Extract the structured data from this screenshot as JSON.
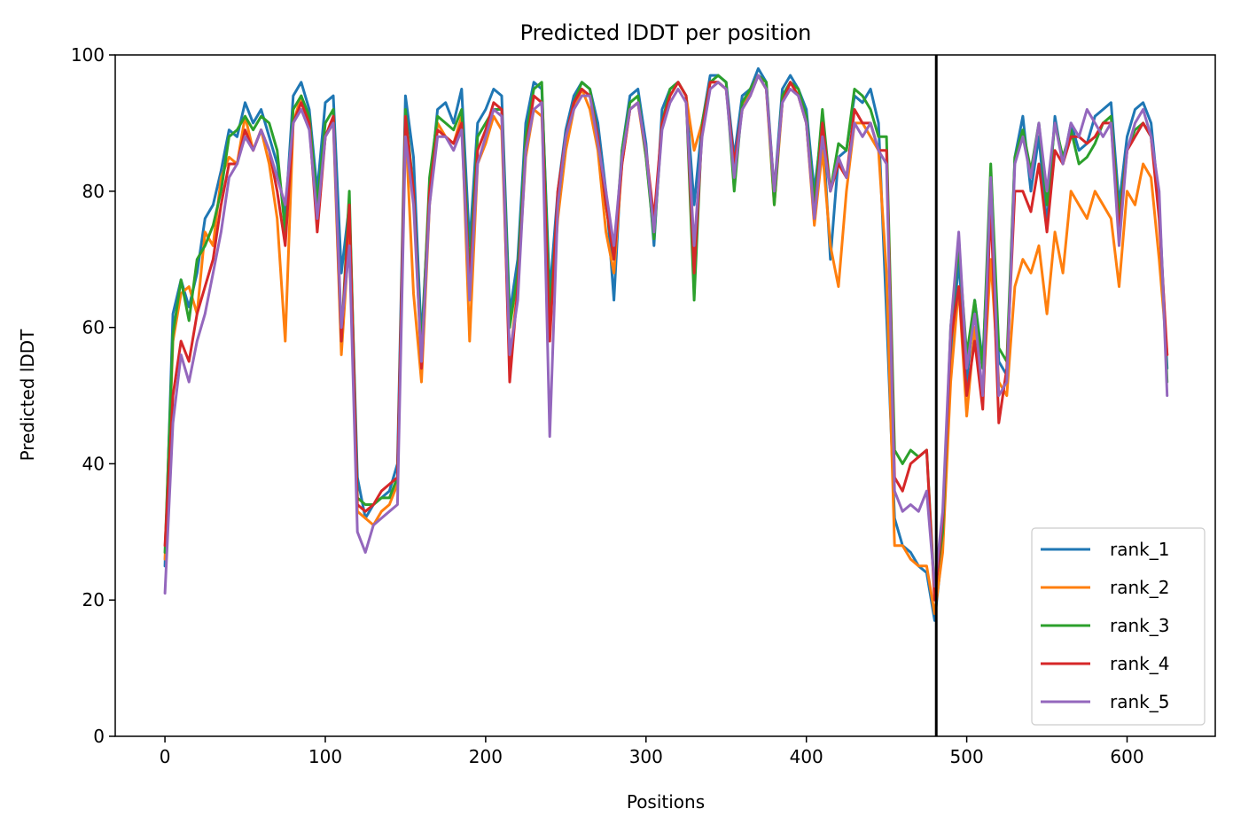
{
  "chart_data": {
    "type": "line",
    "title": "Predicted lDDT per position",
    "xlabel": "Positions",
    "ylabel": "Predicted lDDT",
    "xlim": [
      -31,
      655
    ],
    "ylim": [
      0,
      100
    ],
    "xticks": [
      0,
      100,
      200,
      300,
      400,
      500,
      600
    ],
    "yticks": [
      0,
      20,
      40,
      60,
      80,
      100
    ],
    "grid": false,
    "legend_position": "lower-right",
    "vline": 481,
    "x": [
      0,
      5,
      10,
      15,
      20,
      25,
      30,
      35,
      40,
      45,
      50,
      55,
      60,
      65,
      70,
      75,
      80,
      85,
      90,
      95,
      100,
      105,
      110,
      115,
      120,
      125,
      130,
      135,
      140,
      145,
      150,
      155,
      160,
      165,
      170,
      175,
      180,
      185,
      190,
      195,
      200,
      205,
      210,
      215,
      220,
      225,
      230,
      235,
      240,
      245,
      250,
      255,
      260,
      265,
      270,
      275,
      280,
      285,
      290,
      295,
      300,
      305,
      310,
      315,
      320,
      325,
      330,
      335,
      340,
      345,
      350,
      355,
      360,
      365,
      370,
      375,
      380,
      385,
      390,
      395,
      400,
      405,
      410,
      415,
      420,
      425,
      430,
      435,
      440,
      445,
      450,
      455,
      460,
      465,
      470,
      475,
      480,
      485,
      490,
      495,
      500,
      505,
      510,
      515,
      520,
      525,
      530,
      535,
      540,
      545,
      550,
      555,
      560,
      565,
      570,
      575,
      580,
      585,
      590,
      595,
      600,
      605,
      610,
      615,
      620,
      625
    ],
    "series": [
      {
        "name": "rank_1",
        "color": "#1f77b4",
        "values": [
          25,
          62,
          67,
          63,
          68,
          76,
          78,
          83,
          89,
          88,
          93,
          90,
          92,
          88,
          84,
          76,
          94,
          96,
          92,
          80,
          93,
          94,
          68,
          78,
          38,
          32,
          34,
          35,
          36,
          40,
          94,
          85,
          58,
          80,
          92,
          93,
          90,
          95,
          72,
          90,
          92,
          95,
          94,
          62,
          70,
          90,
          96,
          95,
          65,
          80,
          89,
          94,
          96,
          95,
          90,
          80,
          64,
          86,
          94,
          95,
          87,
          72,
          92,
          95,
          96,
          94,
          78,
          90,
          97,
          97,
          96,
          85,
          94,
          95,
          98,
          96,
          80,
          95,
          97,
          95,
          92,
          80,
          90,
          70,
          85,
          86,
          94,
          93,
          95,
          90,
          62,
          32,
          28,
          27,
          25,
          24,
          17,
          28,
          55,
          70,
          52,
          64,
          55,
          80,
          55,
          53,
          85,
          91,
          80,
          88,
          75,
          91,
          84,
          90,
          86,
          87,
          91,
          92,
          93,
          78,
          88,
          92,
          93,
          90,
          78,
          54
        ]
      },
      {
        "name": "rank_2",
        "color": "#ff7f0e",
        "values": [
          26,
          58,
          65,
          66,
          62,
          74,
          72,
          82,
          85,
          84,
          91,
          86,
          89,
          84,
          76,
          58,
          90,
          94,
          90,
          76,
          88,
          90,
          56,
          74,
          33,
          32,
          31,
          33,
          34,
          37,
          90,
          65,
          52,
          78,
          90,
          88,
          87,
          91,
          58,
          84,
          87,
          91,
          89,
          55,
          66,
          85,
          92,
          91,
          60,
          76,
          86,
          92,
          95,
          92,
          86,
          74,
          68,
          84,
          92,
          93,
          85,
          74,
          90,
          94,
          96,
          94,
          86,
          90,
          96,
          96,
          95,
          83,
          92,
          95,
          97,
          95,
          78,
          93,
          96,
          94,
          90,
          75,
          86,
          72,
          66,
          80,
          90,
          90,
          88,
          86,
          68,
          28,
          28,
          26,
          25,
          25,
          18,
          27,
          52,
          66,
          47,
          60,
          50,
          70,
          52,
          50,
          66,
          70,
          68,
          72,
          62,
          74,
          68,
          80,
          78,
          76,
          80,
          78,
          76,
          66,
          80,
          78,
          84,
          82,
          70,
          56
        ]
      },
      {
        "name": "rank_3",
        "color": "#2ca02c",
        "values": [
          27,
          59,
          67,
          61,
          70,
          72,
          75,
          80,
          88,
          89,
          91,
          89,
          91,
          90,
          86,
          74,
          92,
          94,
          91,
          78,
          90,
          92,
          58,
          80,
          35,
          34,
          34,
          35,
          35,
          38,
          92,
          80,
          56,
          82,
          91,
          90,
          89,
          92,
          68,
          88,
          90,
          92,
          92,
          60,
          68,
          88,
          95,
          96,
          62,
          78,
          88,
          93,
          96,
          95,
          88,
          78,
          70,
          86,
          93,
          94,
          85,
          73,
          90,
          95,
          96,
          94,
          64,
          90,
          96,
          97,
          96,
          80,
          93,
          95,
          97,
          96,
          78,
          94,
          96,
          95,
          91,
          78,
          92,
          80,
          87,
          86,
          95,
          94,
          92,
          88,
          88,
          42,
          40,
          42,
          41,
          42,
          21,
          30,
          60,
          72,
          56,
          64,
          54,
          84,
          57,
          55,
          85,
          89,
          83,
          90,
          78,
          90,
          85,
          89,
          84,
          85,
          87,
          90,
          91,
          76,
          86,
          89,
          90,
          88,
          78,
          52
        ]
      },
      {
        "name": "rank_4",
        "color": "#d62728",
        "values": [
          28,
          50,
          58,
          55,
          62,
          66,
          70,
          78,
          84,
          84,
          89,
          86,
          89,
          86,
          80,
          72,
          90,
          93,
          90,
          74,
          88,
          91,
          58,
          78,
          34,
          33,
          34,
          36,
          37,
          38,
          91,
          80,
          54,
          80,
          89,
          88,
          87,
          90,
          66,
          86,
          89,
          93,
          92,
          52,
          66,
          86,
          94,
          93,
          58,
          80,
          88,
          93,
          95,
          94,
          88,
          78,
          70,
          84,
          92,
          93,
          86,
          76,
          90,
          94,
          96,
          94,
          68,
          89,
          96,
          96,
          95,
          84,
          92,
          94,
          97,
          95,
          80,
          93,
          96,
          94,
          90,
          76,
          90,
          80,
          84,
          82,
          92,
          90,
          90,
          86,
          86,
          38,
          36,
          40,
          41,
          42,
          20,
          32,
          58,
          66,
          50,
          58,
          48,
          78,
          46,
          54,
          80,
          80,
          77,
          84,
          74,
          86,
          84,
          88,
          88,
          87,
          88,
          90,
          90,
          74,
          86,
          88,
          90,
          88,
          76,
          56
        ]
      },
      {
        "name": "rank_5",
        "color": "#9467bd",
        "values": [
          21,
          46,
          56,
          52,
          58,
          62,
          68,
          74,
          82,
          84,
          88,
          86,
          89,
          86,
          82,
          78,
          90,
          92,
          89,
          76,
          88,
          90,
          60,
          72,
          30,
          27,
          31,
          32,
          33,
          34,
          88,
          78,
          55,
          78,
          88,
          88,
          86,
          89,
          64,
          84,
          88,
          92,
          91,
          56,
          64,
          86,
          92,
          93,
          44,
          78,
          88,
          92,
          94,
          94,
          87,
          80,
          72,
          85,
          92,
          93,
          86,
          74,
          89,
          93,
          95,
          93,
          72,
          88,
          95,
          96,
          95,
          82,
          92,
          94,
          97,
          95,
          80,
          93,
          95,
          94,
          90,
          76,
          88,
          80,
          85,
          82,
          90,
          88,
          90,
          86,
          84,
          36,
          33,
          34,
          33,
          36,
          22,
          33,
          60,
          74,
          54,
          62,
          50,
          82,
          50,
          52,
          84,
          88,
          82,
          90,
          80,
          90,
          84,
          90,
          88,
          92,
          90,
          88,
          90,
          72,
          86,
          90,
          92,
          88,
          80,
          50
        ]
      }
    ]
  }
}
